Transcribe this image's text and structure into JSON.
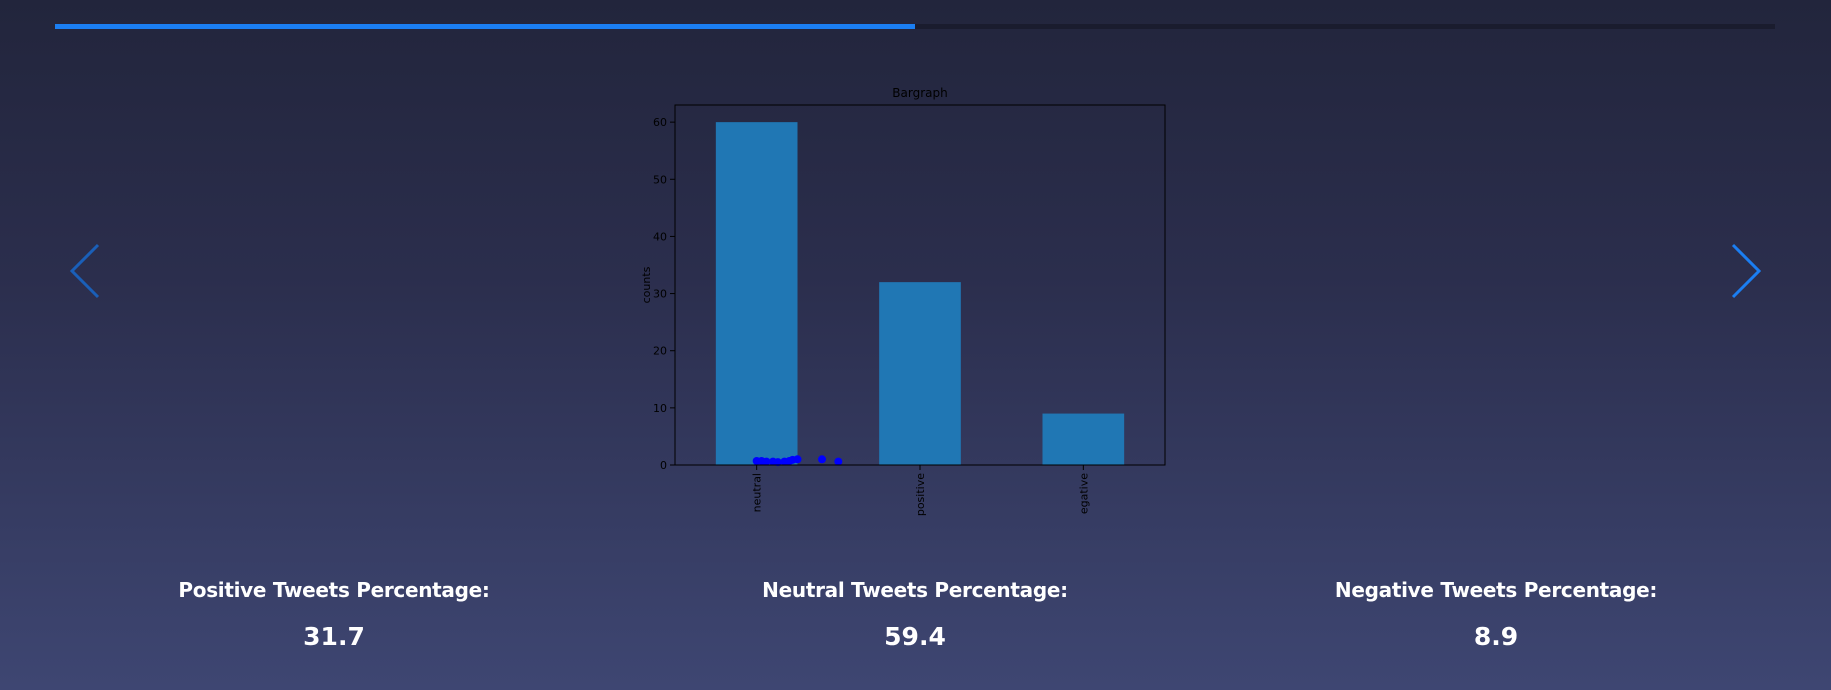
{
  "slider": {
    "progress": 0.5
  },
  "nav": {
    "prev_icon": "chevron-left-icon",
    "next_icon": "chevron-right-icon",
    "prev_color": "#1a5fb8",
    "next_color": "#1b7ef2"
  },
  "chart_data": {
    "type": "bar",
    "title": "Bargraph",
    "ylabel": "counts",
    "xlabel": "",
    "categories": [
      "neutral",
      "positive",
      "egative"
    ],
    "values": [
      60,
      32,
      9
    ],
    "ylim": [
      0,
      63
    ],
    "yticks": [
      0,
      10,
      20,
      30,
      40,
      50,
      60
    ],
    "bar_color": "#2077b4",
    "scatter": {
      "color": "#0000ff",
      "points": [
        [
          0.5,
          0.7
        ],
        [
          0.53,
          0.7
        ],
        [
          0.56,
          0.6
        ],
        [
          0.6,
          0.6
        ],
        [
          0.63,
          0.5
        ],
        [
          0.67,
          0.6
        ],
        [
          0.7,
          0.7
        ],
        [
          0.72,
          0.9
        ],
        [
          0.75,
          1.0
        ],
        [
          0.9,
          1.0
        ],
        [
          1.0,
          0.6
        ]
      ]
    }
  },
  "stats": [
    {
      "label": "Positive Tweets Percentage:",
      "value": "31.7"
    },
    {
      "label": "Neutral Tweets Percentage:",
      "value": "59.4"
    },
    {
      "label": "Negative Tweets Percentage:",
      "value": "8.9"
    }
  ]
}
